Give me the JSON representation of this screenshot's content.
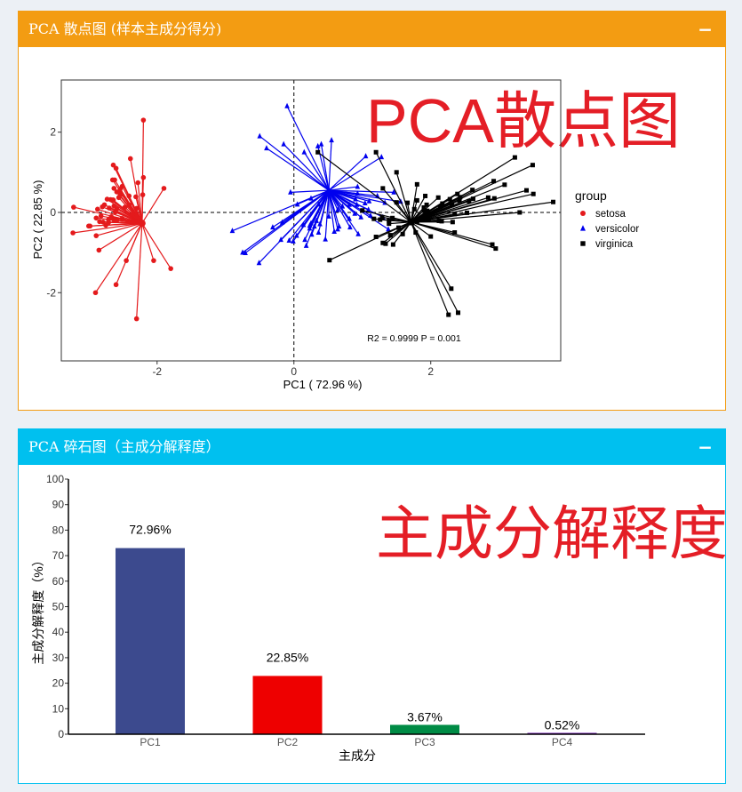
{
  "boxes": {
    "pca_scatter": {
      "title": "PCA 散点图 (样本主成分得分)",
      "collapse": "−"
    },
    "scree": {
      "title": "PCA 碎石图（主成分解释度）",
      "collapse": "−"
    }
  },
  "chart_data": [
    {
      "type": "scatter",
      "title": "",
      "overlay_text": "PCA散点图",
      "xlabel": "PC1 ( 72.96 %)",
      "ylabel": "PC2 ( 22.85 %)",
      "xlim": [
        -3.4,
        3.9
      ],
      "ylim": [
        -3.7,
        3.3
      ],
      "xticks": [
        -2,
        0,
        2
      ],
      "yticks": [
        -2,
        0,
        2
      ],
      "tick_labels": {
        "x": [
          "-2",
          "0",
          "2"
        ],
        "y": [
          "-2",
          "0",
          "2"
        ]
      },
      "reference_lines": {
        "x": 0,
        "y": 0,
        "style": "dashed"
      },
      "annotation": "R2 = 0.9999  P = 0.001",
      "legend": {
        "title": "group",
        "position": "right",
        "entries": [
          "setosa",
          "versicolor",
          "virginica"
        ]
      },
      "series": [
        {
          "name": "setosa",
          "color": "#e41a1c",
          "marker": "circle",
          "centroid": [
            -2.22,
            -0.27
          ],
          "points": [
            [
              -2.68,
              0.32
            ],
            [
              -2.71,
              -0.18
            ],
            [
              -2.89,
              -0.14
            ],
            [
              -2.75,
              -0.32
            ],
            [
              -2.73,
              0.33
            ],
            [
              -2.28,
              0.74
            ],
            [
              -2.82,
              -0.09
            ],
            [
              -2.63,
              0.16
            ],
            [
              -2.89,
              -0.58
            ],
            [
              -2.67,
              -0.11
            ],
            [
              -2.51,
              0.65
            ],
            [
              -2.61,
              0.01
            ],
            [
              -2.79,
              -0.24
            ],
            [
              -3.23,
              -0.51
            ],
            [
              -2.64,
              1.18
            ],
            [
              -2.39,
              1.34
            ],
            [
              -2.62,
              0.81
            ],
            [
              -2.65,
              0.31
            ],
            [
              -2.2,
              0.87
            ],
            [
              -2.59,
              0.51
            ],
            [
              -2.31,
              0.39
            ],
            [
              -2.54,
              0.43
            ],
            [
              -3.22,
              0.13
            ],
            [
              -2.3,
              0.1
            ],
            [
              -2.36,
              -0.04
            ],
            [
              -2.51,
              -0.15
            ],
            [
              -2.47,
              0.13
            ],
            [
              -2.56,
              0.37
            ],
            [
              -2.64,
              0.31
            ],
            [
              -2.63,
              -0.19
            ],
            [
              -2.59,
              -0.2
            ],
            [
              -2.41,
              0.41
            ],
            [
              -2.65,
              0.81
            ],
            [
              -2.6,
              1.1
            ],
            [
              -2.67,
              -0.11
            ],
            [
              -2.87,
              0.08
            ],
            [
              -2.63,
              0.6
            ],
            [
              -2.8,
              0.14
            ],
            [
              -2.98,
              -0.34
            ],
            [
              -2.59,
              0.09
            ],
            [
              -2.77,
              0.19
            ],
            [
              -2.85,
              -0.94
            ],
            [
              -3.0,
              -0.34
            ],
            [
              -2.41,
              0.19
            ],
            [
              -2.21,
              0.44
            ],
            [
              -2.71,
              -0.25
            ],
            [
              -2.54,
              0.5
            ],
            [
              -2.84,
              -0.23
            ],
            [
              -2.54,
              0.58
            ],
            [
              -2.7,
              0.11
            ],
            [
              -2.2,
              2.3
            ],
            [
              -2.6,
              -1.8
            ],
            [
              -2.3,
              -2.65
            ],
            [
              -1.9,
              0.6
            ],
            [
              -1.8,
              -1.4
            ],
            [
              -2.45,
              -1.2
            ],
            [
              -2.05,
              -1.2
            ],
            [
              -2.9,
              -2.0
            ]
          ]
        },
        {
          "name": "versicolor",
          "color": "#0000ee",
          "marker": "triangle",
          "centroid": [
            0.51,
            0.55
          ],
          "points": [
            [
              1.28,
              1.38
            ],
            [
              0.93,
              0.64
            ],
            [
              1.46,
              0.5
            ],
            [
              0.18,
              -0.83
            ],
            [
              1.09,
              0.07
            ],
            [
              0.64,
              -0.42
            ],
            [
              1.1,
              0.28
            ],
            [
              -0.75,
              -1.0
            ],
            [
              1.04,
              0.23
            ],
            [
              -0.01,
              -0.72
            ],
            [
              -0.51,
              -1.26
            ],
            [
              0.51,
              -0.1
            ],
            [
              0.26,
              -0.55
            ],
            [
              0.98,
              -0.12
            ],
            [
              -0.17,
              -0.25
            ],
            [
              0.93,
              0.47
            ],
            [
              0.66,
              -0.35
            ],
            [
              0.23,
              -0.33
            ],
            [
              0.94,
              -0.54
            ],
            [
              0.04,
              -0.58
            ],
            [
              1.12,
              -0.08
            ],
            [
              0.36,
              0.2
            ],
            [
              1.3,
              -0.12
            ],
            [
              0.92,
              0.19
            ],
            [
              0.71,
              0.15
            ],
            [
              0.9,
              0.33
            ],
            [
              1.33,
              0.24
            ],
            [
              1.56,
              0.27
            ],
            [
              0.81,
              -0.16
            ],
            [
              -0.31,
              -0.37
            ],
            [
              -0.07,
              -0.7
            ],
            [
              -0.19,
              -0.68
            ],
            [
              0.14,
              -0.31
            ],
            [
              1.38,
              -0.42
            ],
            [
              0.59,
              -0.48
            ],
            [
              0.81,
              0.19
            ],
            [
              1.22,
              0.41
            ],
            [
              0.82,
              -0.37
            ],
            [
              0.25,
              -0.27
            ],
            [
              0.16,
              -0.68
            ],
            [
              0.46,
              -0.67
            ],
            [
              0.89,
              -0.03
            ],
            [
              0.23,
              -0.4
            ],
            [
              -0.71,
              -1.01
            ],
            [
              0.36,
              -0.5
            ],
            [
              0.33,
              -0.21
            ],
            [
              0.38,
              -0.29
            ],
            [
              0.64,
              0.06
            ],
            [
              -0.9,
              -0.46
            ],
            [
              0.3,
              -0.35
            ],
            [
              -0.1,
              2.65
            ],
            [
              -0.5,
              1.9
            ],
            [
              0.55,
              1.8
            ],
            [
              0.15,
              1.5
            ],
            [
              -0.15,
              1.7
            ],
            [
              -0.4,
              1.6
            ],
            [
              0.35,
              1.65
            ],
            [
              1.05,
              1.4
            ],
            [
              -0.05,
              0.5
            ],
            [
              0.05,
              0.2
            ],
            [
              0.25,
              0.35
            ],
            [
              0.4,
              1.7
            ]
          ]
        },
        {
          "name": "virginica",
          "color": "#000000",
          "marker": "square",
          "centroid": [
            1.71,
            -0.24
          ],
          "points": [
            [
              2.53,
              -0.01
            ],
            [
              1.41,
              -0.57
            ],
            [
              2.62,
              0.34
            ],
            [
              1.97,
              -0.18
            ],
            [
              2.35,
              -0.04
            ],
            [
              3.4,
              0.55
            ],
            [
              0.52,
              -1.19
            ],
            [
              2.93,
              0.35
            ],
            [
              2.32,
              -0.24
            ],
            [
              2.92,
              0.78
            ],
            [
              1.66,
              0.24
            ],
            [
              1.8,
              -0.22
            ],
            [
              2.17,
              0.22
            ],
            [
              1.34,
              -0.78
            ],
            [
              1.59,
              -0.54
            ],
            [
              1.9,
              0.12
            ],
            [
              1.95,
              0.04
            ],
            [
              3.49,
              1.18
            ],
            [
              3.79,
              0.26
            ],
            [
              1.3,
              -0.76
            ],
            [
              2.43,
              0.38
            ],
            [
              1.2,
              -0.61
            ],
            [
              3.5,
              0.46
            ],
            [
              1.39,
              -0.2
            ],
            [
              2.28,
              0.33
            ],
            [
              2.61,
              0.56
            ],
            [
              1.26,
              -0.18
            ],
            [
              1.29,
              -0.12
            ],
            [
              2.12,
              -0.21
            ],
            [
              2.39,
              0.46
            ],
            [
              2.84,
              0.37
            ],
            [
              3.23,
              1.37
            ],
            [
              2.16,
              -0.22
            ],
            [
              1.44,
              -0.14
            ],
            [
              1.78,
              -0.5
            ],
            [
              3.08,
              0.69
            ],
            [
              2.14,
              0.14
            ],
            [
              1.9,
              0.05
            ],
            [
              1.17,
              -0.16
            ],
            [
              2.11,
              0.37
            ],
            [
              2.31,
              0.18
            ],
            [
              1.92,
              0.41
            ],
            [
              1.41,
              -0.57
            ],
            [
              2.56,
              0.28
            ],
            [
              2.42,
              0.3
            ],
            [
              1.94,
              0.19
            ],
            [
              1.53,
              -0.38
            ],
            [
              1.76,
              0.08
            ],
            [
              1.9,
              0.12
            ],
            [
              1.39,
              -0.28
            ],
            [
              2.3,
              -1.9
            ],
            [
              2.26,
              -2.55
            ],
            [
              2.4,
              -2.5
            ],
            [
              3.3,
              0.0
            ],
            [
              2.9,
              -0.8
            ],
            [
              1.8,
              0.7
            ],
            [
              1.5,
              1.0
            ],
            [
              1.3,
              0.6
            ],
            [
              1.2,
              1.5
            ],
            [
              0.35,
              1.5
            ],
            [
              2.0,
              -0.6
            ],
            [
              1.8,
              0.3
            ],
            [
              1.0,
              0.05
            ],
            [
              1.5,
              0.25
            ],
            [
              1.45,
              -0.8
            ],
            [
              2.35,
              -0.5
            ],
            [
              2.95,
              -0.9
            ]
          ]
        }
      ]
    },
    {
      "type": "bar",
      "title": "",
      "overlay_text": "主成分解释度",
      "xlabel": "主成分",
      "ylabel": "主成分解释度（%）",
      "categories": [
        "PC1",
        "PC2",
        "PC3",
        "PC4"
      ],
      "values": [
        72.96,
        22.85,
        3.67,
        0.52
      ],
      "value_labels": [
        "72.96%",
        "22.85%",
        "3.67%",
        "0.52%"
      ],
      "colors": [
        "#3c4a8e",
        "#ee0000",
        "#008b45",
        "#6a0dad"
      ],
      "ylim": [
        0,
        100
      ],
      "yticks": [
        0,
        10,
        20,
        30,
        40,
        50,
        60,
        70,
        80,
        90,
        100
      ]
    }
  ]
}
